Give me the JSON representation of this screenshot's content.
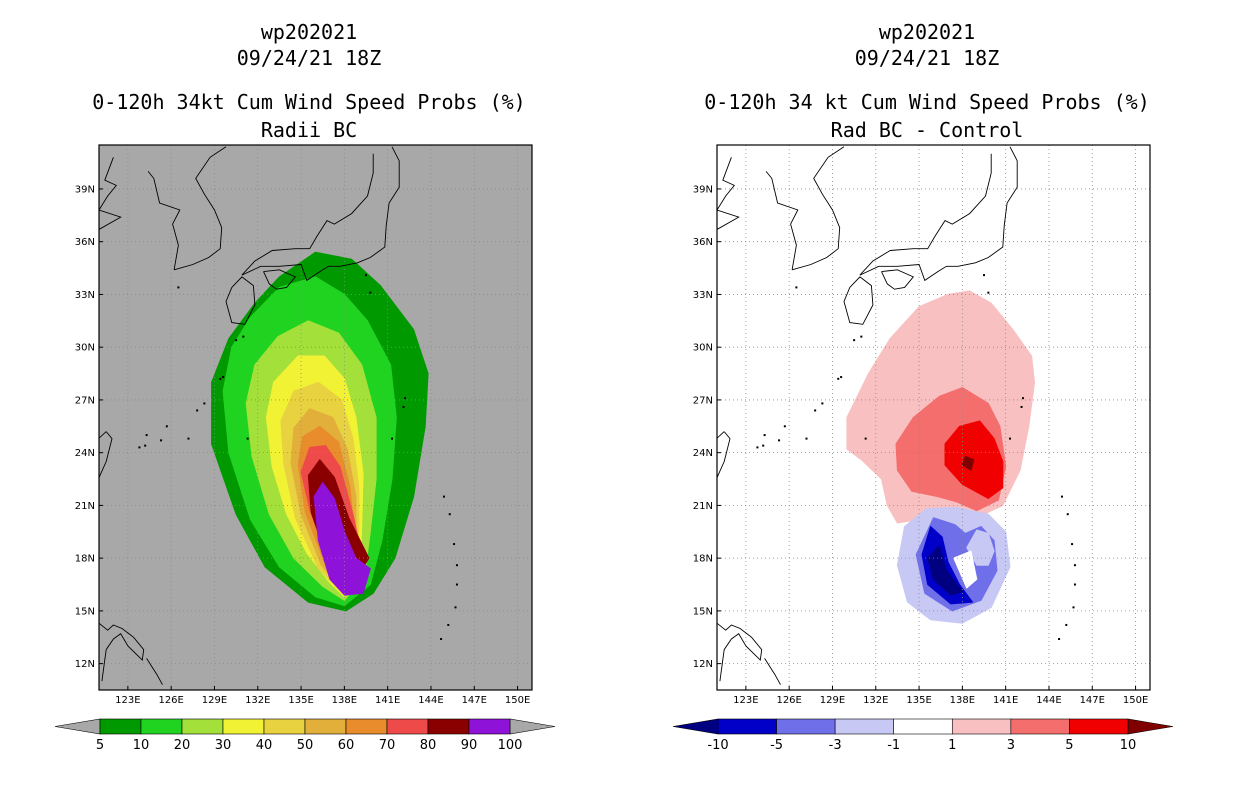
{
  "chart_data": [
    {
      "type": "heatmap",
      "storm_id": "wp202021",
      "datetime": "09/24/21 18Z",
      "title": "0-120h 34kt Cum Wind Speed Probs (%)",
      "subtitle": "Radii BC",
      "xlabel": "",
      "ylabel": "",
      "xlim": [
        121,
        151
      ],
      "ylim": [
        10.5,
        41.5
      ],
      "xticks": [
        "123E",
        "126E",
        "129E",
        "132E",
        "135E",
        "138E",
        "141E",
        "144E",
        "147E",
        "150E"
      ],
      "yticks": [
        "12N",
        "15N",
        "18N",
        "21N",
        "24N",
        "27N",
        "30N",
        "33N",
        "36N",
        "39N"
      ],
      "grid": true,
      "background": "#a8a8a8",
      "colorbar": {
        "labels": [
          "5",
          "10",
          "20",
          "30",
          "40",
          "50",
          "60",
          "70",
          "80",
          "90",
          "100"
        ],
        "colors": [
          "#009a00",
          "#21d321",
          "#a3e03a",
          "#f2f235",
          "#e8d23f",
          "#e2b03a",
          "#e88c2c",
          "#ee4a4a",
          "#8a0000",
          "#8e12d8"
        ],
        "extend_colors": [
          "#a8a8a8",
          "#a8a8a8"
        ]
      },
      "contours": [
        {
          "level": 5,
          "color": "#009a00",
          "ring": [
            [
              138.1,
              15.0
            ],
            [
              135.5,
              15.5
            ],
            [
              132.5,
              17.5
            ],
            [
              130.5,
              20.5
            ],
            [
              128.8,
              24.5
            ],
            [
              128.8,
              28.0
            ],
            [
              130.0,
              30.5
            ],
            [
              131.8,
              32.5
            ],
            [
              133.5,
              34.0
            ],
            [
              136.0,
              35.4
            ],
            [
              138.5,
              35.0
            ],
            [
              140.5,
              33.5
            ],
            [
              142.8,
              31.0
            ],
            [
              143.8,
              28.5
            ],
            [
              143.6,
              25.5
            ],
            [
              142.8,
              21.5
            ],
            [
              141.5,
              18.0
            ],
            [
              140.0,
              16.0
            ]
          ]
        },
        {
          "level": 10,
          "color": "#21d321",
          "ring": [
            [
              138.0,
              15.3
            ],
            [
              136.0,
              15.8
            ],
            [
              133.5,
              17.5
            ],
            [
              131.5,
              20.2
            ],
            [
              130.0,
              24.0
            ],
            [
              129.6,
              27.5
            ],
            [
              130.2,
              30.0
            ],
            [
              131.5,
              31.7
            ],
            [
              133.5,
              33.4
            ],
            [
              136.0,
              34.0
            ],
            [
              138.0,
              33.0
            ],
            [
              139.6,
              31.5
            ],
            [
              141.2,
              29.0
            ],
            [
              141.6,
              26.0
            ],
            [
              141.3,
              22.5
            ],
            [
              140.6,
              19.0
            ],
            [
              139.8,
              16.5
            ]
          ]
        },
        {
          "level": 20,
          "color": "#a3e03a",
          "ring": [
            [
              138.0,
              15.6
            ],
            [
              136.5,
              16.4
            ],
            [
              134.5,
              18.0
            ],
            [
              132.8,
              20.5
            ],
            [
              131.6,
              23.8
            ],
            [
              131.2,
              26.8
            ],
            [
              131.8,
              29.0
            ],
            [
              133.4,
              30.6
            ],
            [
              135.5,
              31.5
            ],
            [
              137.6,
              30.8
            ],
            [
              139.2,
              29.0
            ],
            [
              140.2,
              26.0
            ],
            [
              140.2,
              22.5
            ],
            [
              139.8,
              19.5
            ],
            [
              139.4,
              17.0
            ]
          ]
        },
        {
          "level": 30,
          "color": "#f2f235",
          "ring": [
            [
              138.0,
              15.8
            ],
            [
              137.0,
              16.6
            ],
            [
              135.4,
              18.3
            ],
            [
              134.0,
              20.5
            ],
            [
              133.0,
              23.2
            ],
            [
              132.6,
              26.0
            ],
            [
              133.1,
              28.0
            ],
            [
              134.8,
              29.5
            ],
            [
              136.6,
              29.5
            ],
            [
              138.0,
              28.2
            ],
            [
              138.8,
              26.0
            ],
            [
              139.3,
              22.8
            ],
            [
              139.2,
              19.8
            ],
            [
              139.1,
              17.3
            ]
          ]
        },
        {
          "level": 40,
          "color": "#e8d23f",
          "ring": [
            [
              138.0,
              15.9
            ],
            [
              136.2,
              17.4
            ],
            [
              134.6,
              20.3
            ],
            [
              133.8,
              23.4
            ],
            [
              133.6,
              25.8
            ],
            [
              134.5,
              27.5
            ],
            [
              136.2,
              28.0
            ],
            [
              137.8,
              27.0
            ],
            [
              138.6,
              24.8
            ],
            [
              139.0,
              22.0
            ],
            [
              139.0,
              19.5
            ],
            [
              138.9,
              17.5
            ]
          ]
        },
        {
          "level": 50,
          "color": "#e2b03a",
          "ring": [
            [
              138.0,
              16.0
            ],
            [
              136.4,
              17.6
            ],
            [
              135.0,
              20.5
            ],
            [
              134.3,
              23.4
            ],
            [
              134.5,
              25.4
            ],
            [
              135.6,
              26.5
            ],
            [
              137.2,
              26.0
            ],
            [
              138.2,
              24.2
            ],
            [
              138.8,
              21.5
            ],
            [
              138.8,
              19.0
            ]
          ]
        },
        {
          "level": 60,
          "color": "#e88c2c",
          "ring": [
            [
              138.0,
              16.1
            ],
            [
              136.6,
              17.8
            ],
            [
              135.3,
              20.6
            ],
            [
              134.8,
              23.3
            ],
            [
              135.1,
              24.9
            ],
            [
              136.3,
              25.5
            ],
            [
              137.6,
              24.6
            ],
            [
              138.4,
              22.0
            ],
            [
              138.7,
              19.3
            ]
          ]
        },
        {
          "level": 70,
          "color": "#ee4a4a",
          "ring": [
            [
              138.1,
              16.0
            ],
            [
              136.8,
              18.0
            ],
            [
              135.6,
              20.8
            ],
            [
              135.0,
              22.9
            ],
            [
              135.6,
              24.3
            ],
            [
              136.7,
              24.4
            ],
            [
              137.7,
              23.2
            ],
            [
              138.6,
              20.5
            ],
            [
              139.2,
              18.2
            ]
          ]
        },
        {
          "level": 80,
          "color": "#8a0000",
          "ring": [
            [
              138.1,
              15.9
            ],
            [
              136.8,
              18.0
            ],
            [
              135.7,
              20.6
            ],
            [
              135.5,
              22.7
            ],
            [
              136.3,
              23.6
            ],
            [
              137.3,
              22.6
            ],
            [
              138.3,
              20.3
            ],
            [
              139.7,
              18.0
            ]
          ]
        },
        {
          "level": 90,
          "color": "#8e12d8",
          "ring": [
            [
              138.0,
              15.9
            ],
            [
              137.0,
              16.8
            ],
            [
              136.2,
              19.0
            ],
            [
              135.9,
              21.5
            ],
            [
              136.5,
              22.3
            ],
            [
              137.3,
              21.4
            ],
            [
              138.0,
              19.5
            ],
            [
              138.8,
              18.0
            ],
            [
              139.8,
              17.4
            ],
            [
              139.3,
              16.0
            ]
          ]
        }
      ]
    },
    {
      "type": "heatmap",
      "storm_id": "wp202021",
      "datetime": "09/24/21 18Z",
      "title": "0-120h 34 kt Cum Wind Speed Probs (%)",
      "subtitle": "Rad BC - Control",
      "xlabel": "",
      "ylabel": "",
      "xlim": [
        121,
        151
      ],
      "ylim": [
        10.5,
        41.5
      ],
      "xticks": [
        "123E",
        "126E",
        "129E",
        "132E",
        "135E",
        "138E",
        "141E",
        "144E",
        "147E",
        "150E"
      ],
      "yticks": [
        "12N",
        "15N",
        "18N",
        "21N",
        "24N",
        "27N",
        "30N",
        "33N",
        "36N",
        "39N"
      ],
      "grid": true,
      "background": "#ffffff",
      "colorbar": {
        "labels": [
          "-10",
          "-5",
          "-3",
          "-1",
          "1",
          "3",
          "5",
          "10"
        ],
        "colors": [
          "#0000c8",
          "#6f6fea",
          "#c8c8f5",
          "#ffffff",
          "#f8c0c0",
          "#f46e6e",
          "#f00000"
        ],
        "extend_colors": [
          "#000080",
          "#800000"
        ]
      },
      "contours": [
        {
          "level": 1,
          "color": "#f8c0c0",
          "ring": [
            [
              133.5,
              20.0
            ],
            [
              135.0,
              20.2
            ],
            [
              137.0,
              20.2
            ],
            [
              139.0,
              20.3
            ],
            [
              140.8,
              21.0
            ],
            [
              142.0,
              23.0
            ],
            [
              142.6,
              25.5
            ],
            [
              143.0,
              28.0
            ],
            [
              142.8,
              29.5
            ],
            [
              141.5,
              31.0
            ],
            [
              140.0,
              32.5
            ],
            [
              138.5,
              33.2
            ],
            [
              137.0,
              33.0
            ],
            [
              135.0,
              32.3
            ],
            [
              133.0,
              30.5
            ],
            [
              131.5,
              28.5
            ],
            [
              130.0,
              26.0
            ],
            [
              130.0,
              24.2
            ],
            [
              131.0,
              23.6
            ],
            [
              132.4,
              22.5
            ],
            [
              132.8,
              21.0
            ]
          ]
        },
        {
          "level": 3,
          "color": "#f46e6e",
          "ring": [
            [
              133.5,
              23.0
            ],
            [
              134.5,
              21.8
            ],
            [
              136.3,
              21.5
            ],
            [
              137.6,
              21.2
            ],
            [
              139.0,
              20.7
            ],
            [
              140.5,
              21.3
            ],
            [
              141.0,
              23.2
            ],
            [
              140.6,
              25.5
            ],
            [
              139.8,
              26.8
            ],
            [
              138.0,
              27.7
            ],
            [
              136.4,
              27.2
            ],
            [
              134.6,
              26.0
            ],
            [
              133.4,
              24.5
            ]
          ]
        },
        {
          "level": 5,
          "color": "#f00000",
          "ring": [
            [
              136.8,
              23.3
            ],
            [
              138.0,
              22.2
            ],
            [
              139.8,
              21.4
            ],
            [
              140.8,
              22.0
            ],
            [
              140.8,
              23.5
            ],
            [
              140.2,
              24.8
            ],
            [
              139.2,
              25.8
            ],
            [
              137.8,
              25.5
            ],
            [
              136.8,
              24.5
            ]
          ]
        },
        {
          "level": 10,
          "color": "#800000",
          "ring": [
            [
              138.0,
              23.3
            ],
            [
              138.6,
              23.0
            ],
            [
              138.8,
              23.6
            ],
            [
              138.2,
              23.8
            ]
          ]
        },
        {
          "level": -1,
          "color": "#c8c8f5",
          "ring": [
            [
              133.5,
              17.6
            ],
            [
              134.2,
              15.5
            ],
            [
              135.8,
              14.5
            ],
            [
              138.0,
              14.3
            ],
            [
              140.0,
              15.2
            ],
            [
              141.3,
              17.5
            ],
            [
              141.0,
              19.5
            ],
            [
              139.8,
              20.5
            ],
            [
              137.5,
              20.9
            ],
            [
              135.5,
              20.8
            ],
            [
              134.0,
              19.8
            ]
          ]
        },
        {
          "level": -3,
          "color": "#6f6fea",
          "ring": [
            [
              134.8,
              18.2
            ],
            [
              135.4,
              16.0
            ],
            [
              137.3,
              15.0
            ],
            [
              139.3,
              15.6
            ],
            [
              140.4,
              17.3
            ],
            [
              140.2,
              19.0
            ],
            [
              139.3,
              19.8
            ],
            [
              138.2,
              19.4
            ],
            [
              137.5,
              19.9
            ],
            [
              136.0,
              20.3
            ]
          ]
        },
        {
          "level": -5,
          "color": "#0000c8",
          "ring": [
            [
              135.2,
              18.2
            ],
            [
              135.6,
              16.5
            ],
            [
              137.2,
              15.4
            ],
            [
              138.7,
              15.5
            ],
            [
              137.8,
              16.5
            ],
            [
              137.0,
              17.8
            ],
            [
              136.6,
              19.2
            ],
            [
              135.8,
              19.8
            ]
          ]
        },
        {
          "level": -10,
          "color": "#000080",
          "ring": [
            [
              135.6,
              18.0
            ],
            [
              136.0,
              16.8
            ],
            [
              137.2,
              15.9
            ],
            [
              138.0,
              16.1
            ],
            [
              136.9,
              17.3
            ],
            [
              136.4,
              18.7
            ]
          ]
        }
      ],
      "light_patches": [
        {
          "level": -1,
          "color": "#c8c8f5",
          "ring": [
            [
              138.3,
              18.6
            ],
            [
              139.0,
              17.6
            ],
            [
              139.8,
              17.6
            ],
            [
              140.2,
              18.4
            ],
            [
              139.8,
              19.4
            ],
            [
              139.0,
              19.6
            ]
          ]
        },
        {
          "level": 1,
          "color": "#ffffff",
          "ring": [
            [
              137.4,
              18.0
            ],
            [
              138.3,
              16.3
            ],
            [
              139.0,
              16.8
            ],
            [
              138.6,
              18.4
            ]
          ]
        }
      ]
    }
  ]
}
